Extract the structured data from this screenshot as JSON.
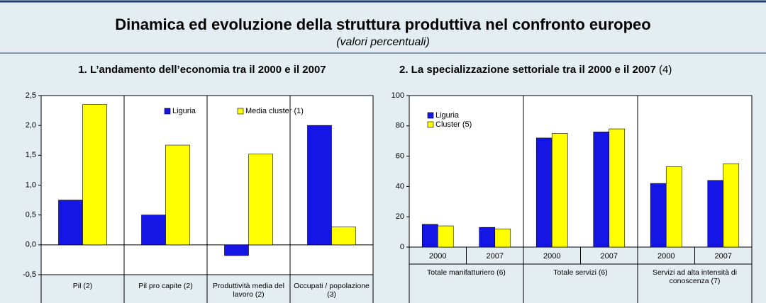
{
  "title": "Dinamica ed evoluzione della struttura produttiva nel confronto europeo",
  "subtitle": "(valori percentuali)",
  "chart_data": [
    {
      "type": "bar",
      "title": "1. L’andamento dell’economia tra il 2000 e il 2007",
      "categories": [
        "Pil (2)",
        "Pil pro capite (2)",
        "Produttività media del lavoro (2)",
        "Occupati / popolazione (3)"
      ],
      "series": [
        {
          "name": "Liguria",
          "color": "#1515e6",
          "values": [
            0.75,
            0.5,
            -0.18,
            2.0
          ]
        },
        {
          "name": "Media cluster (1)",
          "color": "#ffff00",
          "values": [
            2.35,
            1.67,
            1.52,
            0.3
          ]
        }
      ],
      "ylim": [
        -0.5,
        2.5
      ],
      "yticks": [
        {
          "value": -0.5,
          "label": "-0,5"
        },
        {
          "value": 0,
          "label": "0,0"
        },
        {
          "value": 0.5,
          "label": "0,5"
        },
        {
          "value": 1,
          "label": "1,0"
        },
        {
          "value": 1.5,
          "label": "1,5"
        },
        {
          "value": 2,
          "label": "2,0"
        },
        {
          "value": 2.5,
          "label": "2,5"
        }
      ],
      "legend": "upper center"
    },
    {
      "type": "bar",
      "title": "2. La specializzazione settoriale tra il 2000 e il 2007",
      "title_note": "(4)",
      "categories": [
        "2000",
        "2007",
        "2000",
        "2007",
        "2000",
        "2007"
      ],
      "groups": [
        "Totale manifatturiero (6)",
        "Totale servizi (6)",
        "Servizi ad alta intensità di conoscenza (7)"
      ],
      "series": [
        {
          "name": "Liguria",
          "color": "#1515e6",
          "values": [
            15,
            13,
            72,
            76,
            42,
            44
          ]
        },
        {
          "name": "Cluster (5)",
          "color": "#ffff00",
          "values": [
            14,
            12,
            75,
            78,
            53,
            55
          ]
        }
      ],
      "ylim": [
        0,
        100
      ],
      "yticks": [
        0,
        20,
        40,
        60,
        80,
        100
      ],
      "legend": "upper left"
    }
  ]
}
